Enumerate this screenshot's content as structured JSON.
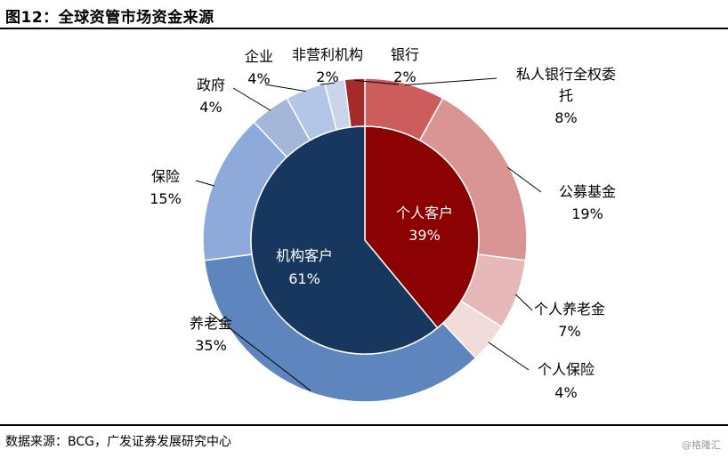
{
  "header": {
    "title": "图12：全球资管市场资金来源"
  },
  "footer": {
    "source": "数据来源：BCG，广发证券发展研究中心",
    "watermark": "@格隆汇"
  },
  "chart_data": {
    "type": "pie",
    "title": "图12：全球资管市场资金来源",
    "inner": [
      {
        "name": "个人客户",
        "value": 39,
        "label": "39%",
        "color": "#8b0000"
      },
      {
        "name": "机构客户",
        "value": 61,
        "label": "61%",
        "color": "#17375e"
      }
    ],
    "outer": [
      {
        "name": "私人银行全权委托",
        "line1": "私人银行全权委",
        "line2": "托",
        "value": 8,
        "label": "8%",
        "color": "#cd5c5c"
      },
      {
        "name": "公募基金",
        "value": 19,
        "label": "19%",
        "color": "#d99594"
      },
      {
        "name": "个人养老金",
        "value": 7,
        "label": "7%",
        "color": "#e6b9b8"
      },
      {
        "name": "个人保险",
        "value": 4,
        "label": "4%",
        "color": "#f2dcdb"
      },
      {
        "name": "养老金",
        "value": 35,
        "label": "35%",
        "color": "#5f85bf"
      },
      {
        "name": "保险",
        "value": 15,
        "label": "15%",
        "color": "#8eaadb"
      },
      {
        "name": "政府",
        "value": 4,
        "label": "4%",
        "color": "#a5b7d9"
      },
      {
        "name": "企业",
        "value": 4,
        "label": "4%",
        "color": "#b4c6e7"
      },
      {
        "name": "非营利机构",
        "value": 2,
        "label": "2%",
        "color": "#c9d5ea"
      },
      {
        "name": "银行",
        "value": 2,
        "label": "2%",
        "color": "#a52a2a"
      }
    ]
  }
}
